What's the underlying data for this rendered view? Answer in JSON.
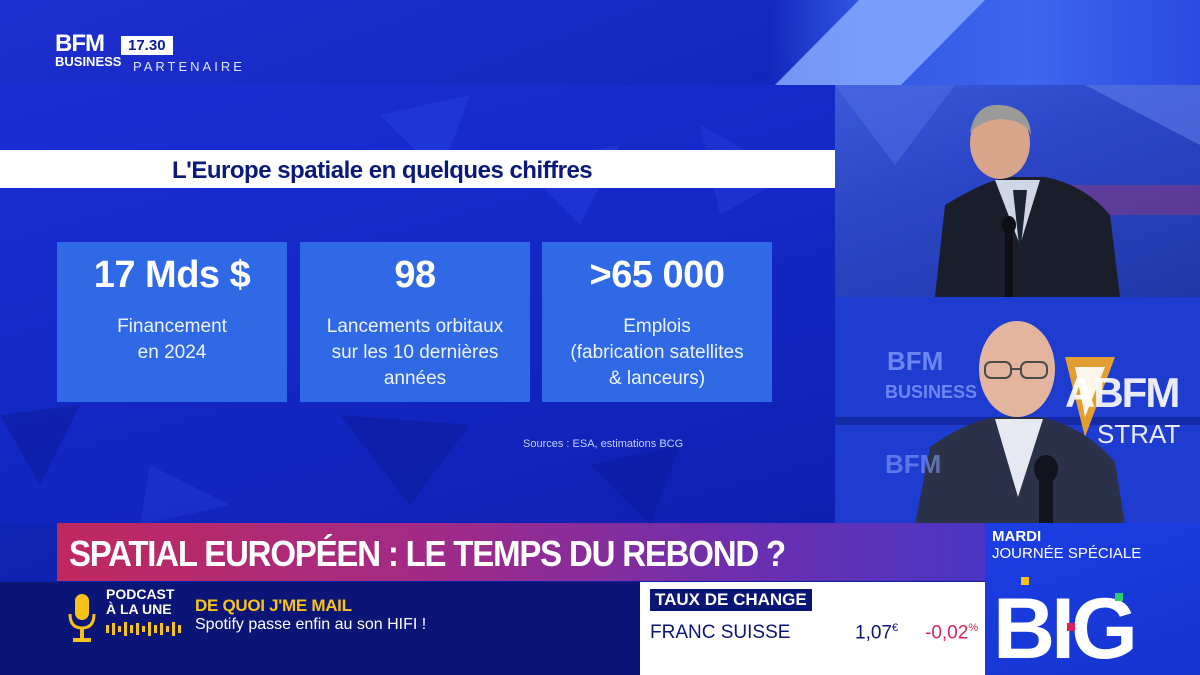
{
  "channel": {
    "logo_line1": "BFM",
    "logo_line2": "BUSINESS",
    "time": "17.30",
    "tag": "PARTENAIRE"
  },
  "panel": {
    "title": "L'Europe spatiale en quelques chiffres",
    "stats": [
      {
        "value": "17 Mds $",
        "description": "Financement\nen 2024"
      },
      {
        "value": "98",
        "description": "Lancements orbitaux\nsur les 10 dernières\nannées"
      },
      {
        "value": ">65 000",
        "description": "Emplois\n(fabrication satellites\n& lanceurs)"
      }
    ],
    "sources": "Sources : ESA, estimations BCG"
  },
  "studio": {
    "backdrop_bfm": "BFM",
    "backdrop_business": "BUSINESS",
    "backdrop_abfm": "ABFM",
    "backdrop_strat": "STRAT"
  },
  "headline": "SPATIAL EUROPÉEN : LE TEMPS DU REBOND ?",
  "ticker": {
    "podcast_label_1": "PODCAST",
    "podcast_label_2": "À LA UNE",
    "title": "DE QUOI J'ME MAIL",
    "text": "Spotify passe enfin au son HIFI !"
  },
  "fx": {
    "header": "TAUX DE CHANGE",
    "name": "FRANC SUISSE",
    "rate": "1,07",
    "rate_unit": "€",
    "change": "-0,02",
    "change_unit": "%"
  },
  "promo": {
    "day": "MARDI",
    "subtitle": "JOURNÉE SPÉCIALE",
    "logo_text": "BIG"
  },
  "colors": {
    "accent_yellow": "#f7c21a",
    "headline_magenta": "#c0295e",
    "change_red": "#d8245a",
    "brand_blue": "#0b1576"
  }
}
